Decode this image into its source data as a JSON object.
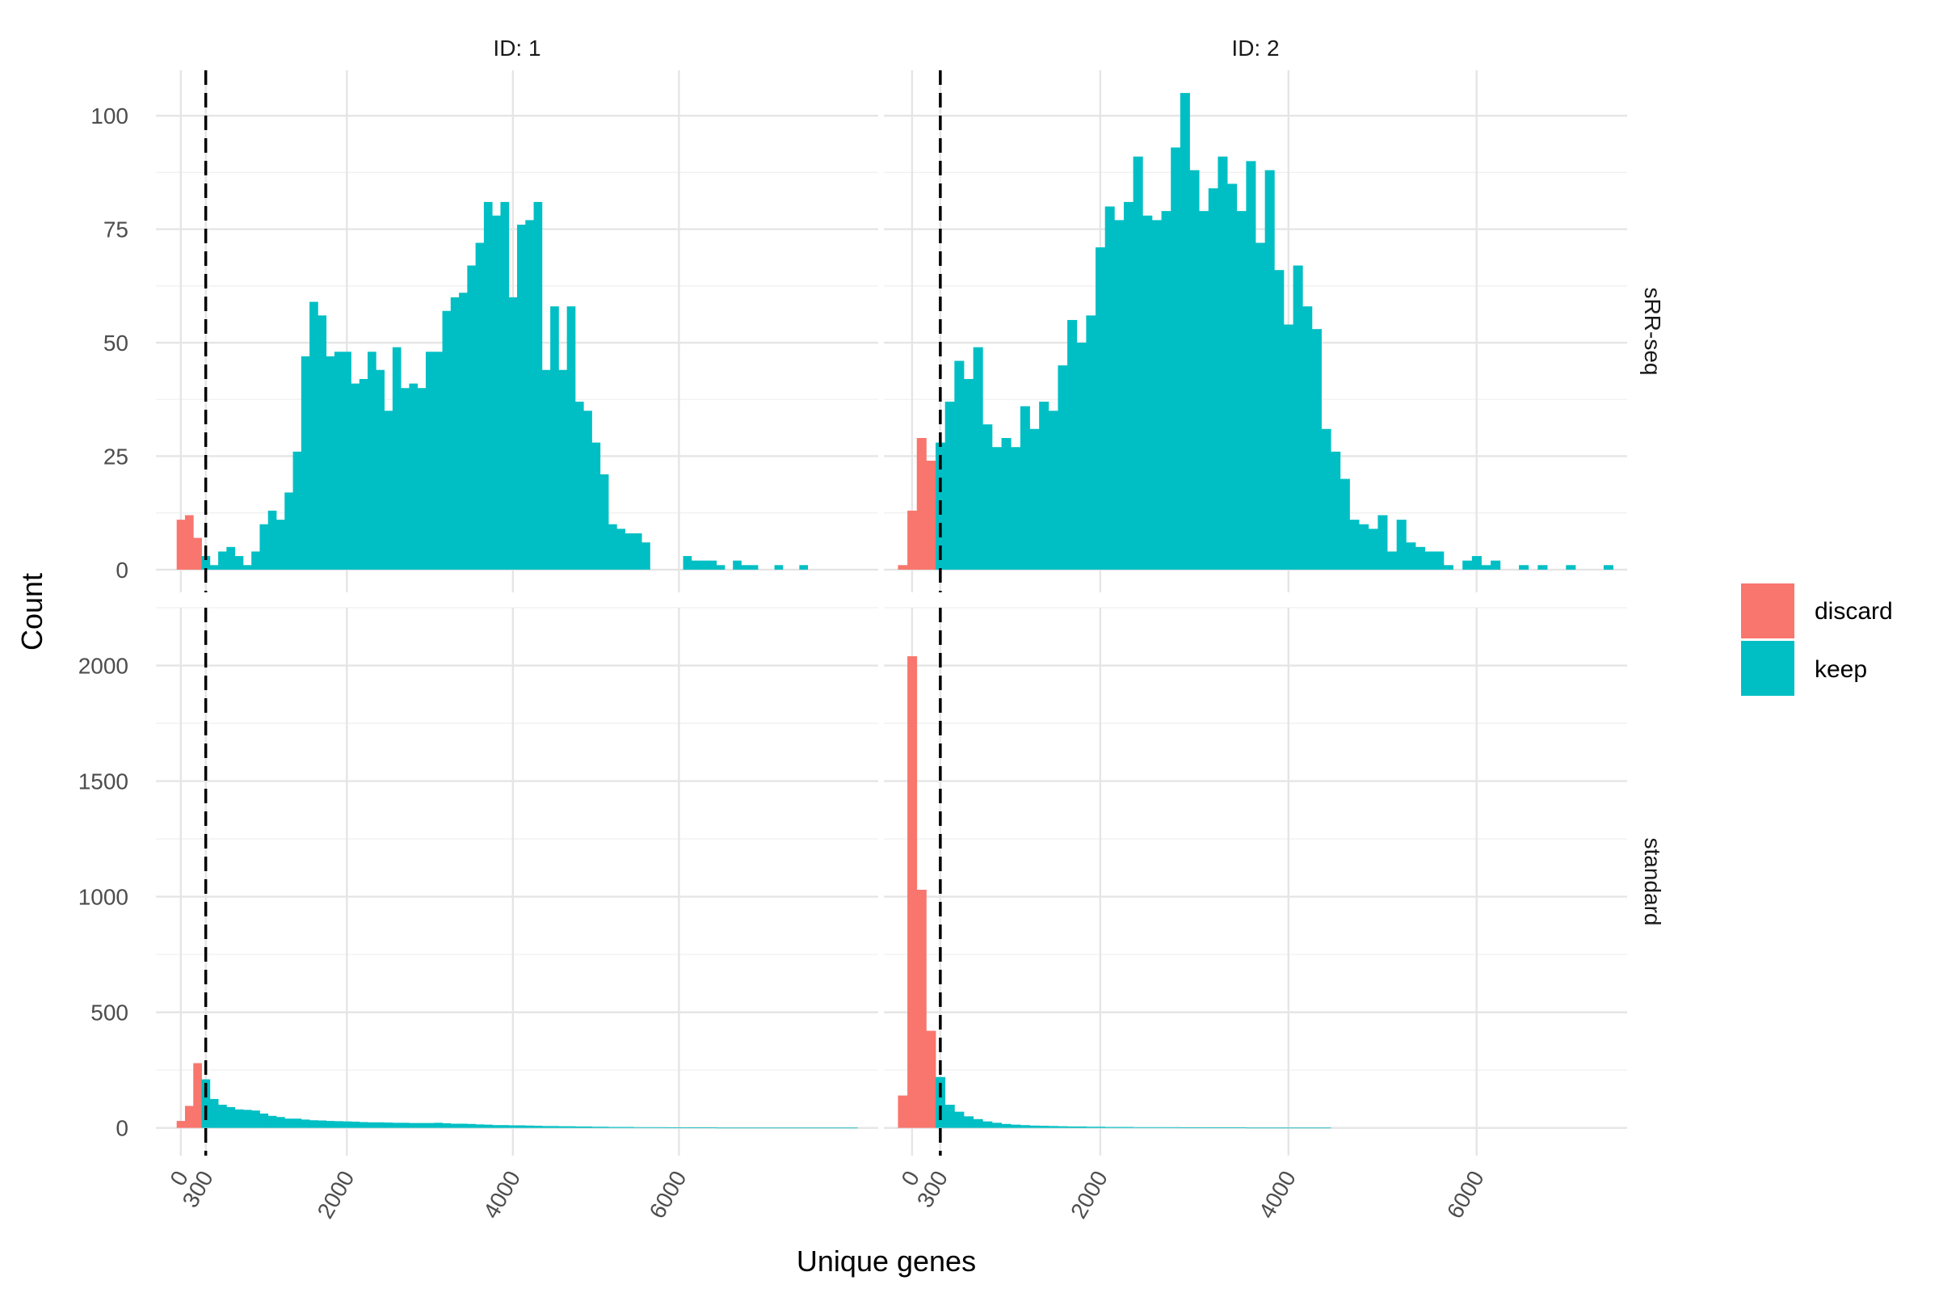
{
  "chart_data": {
    "type": "bar",
    "subtype": "faceted-histogram",
    "xlabel": "Unique genes",
    "ylabel": "Count",
    "bin_width": 100,
    "cutoff": 300,
    "x_ticks": [
      0,
      300,
      2000,
      4000,
      6000
    ],
    "x_tick_labels": [
      "0",
      "300",
      "2000",
      "4000",
      "6000"
    ],
    "column_strips": [
      "ID: 1",
      "ID: 2"
    ],
    "row_strips": [
      "sRR-seq",
      "standard"
    ],
    "colors": {
      "discard": "#F8766D",
      "keep": "#00BFC4"
    },
    "legend": {
      "position": "right",
      "entries": [
        {
          "label": "discard"
        },
        {
          "label": "keep"
        }
      ]
    },
    "facets": [
      {
        "column": "ID: 1",
        "row": "sRR-seq",
        "xlim": [
          -300,
          8400
        ],
        "ylim": [
          -5,
          110
        ],
        "y_ticks": [
          0,
          25,
          50,
          75,
          100
        ],
        "discard": {
          "x": [
            0,
            100,
            200
          ],
          "values": [
            11,
            12,
            7
          ]
        },
        "keep": {
          "x": [
            300,
            400,
            500,
            600,
            700,
            800,
            900,
            1000,
            1100,
            1200,
            1300,
            1400,
            1500,
            1600,
            1700,
            1800,
            1900,
            2000,
            2100,
            2200,
            2300,
            2400,
            2500,
            2600,
            2700,
            2800,
            2900,
            3000,
            3100,
            3200,
            3300,
            3400,
            3500,
            3600,
            3700,
            3800,
            3900,
            4000,
            4100,
            4200,
            4300,
            4400,
            4500,
            4600,
            4700,
            4800,
            4900,
            5000,
            5100,
            5200,
            5300,
            5400,
            5500,
            5600,
            5700,
            5800,
            5900,
            6000,
            6100,
            6200,
            6300,
            6400,
            6500,
            6600,
            6700,
            6800,
            6900,
            7000,
            7100,
            7200,
            7300,
            7400,
            7500,
            7600,
            7700,
            7800,
            7900,
            8000,
            8100
          ],
          "values": [
            3,
            1,
            4,
            5,
            3,
            1,
            4,
            10,
            13,
            11,
            17,
            26,
            47,
            59,
            56,
            47,
            48,
            48,
            41,
            42,
            48,
            44,
            35,
            49,
            40,
            41,
            40,
            48,
            48,
            57,
            60,
            61,
            67,
            72,
            81,
            78,
            81,
            60,
            76,
            77,
            81,
            44,
            58,
            44,
            58,
            37,
            35,
            28,
            21,
            10,
            9,
            8,
            8,
            6,
            0,
            0,
            0,
            0,
            3,
            2,
            2,
            2,
            1,
            0,
            2,
            1,
            1,
            0,
            0,
            1,
            0,
            0,
            1,
            0,
            0,
            0,
            0,
            0,
            0
          ]
        }
      },
      {
        "column": "ID: 2",
        "row": "sRR-seq",
        "xlim": [
          -300,
          7600
        ],
        "ylim": [
          -5,
          110
        ],
        "y_ticks": [
          0,
          25,
          50,
          75,
          100
        ],
        "discard": {
          "x": [
            -100,
            0,
            100,
            200
          ],
          "values": [
            1,
            13,
            29,
            24
          ]
        },
        "keep": {
          "x": [
            300,
            400,
            500,
            600,
            700,
            800,
            900,
            1000,
            1100,
            1200,
            1300,
            1400,
            1500,
            1600,
            1700,
            1800,
            1900,
            2000,
            2100,
            2200,
            2300,
            2400,
            2500,
            2600,
            2700,
            2800,
            2900,
            3000,
            3100,
            3200,
            3300,
            3400,
            3500,
            3600,
            3700,
            3800,
            3900,
            4000,
            4100,
            4200,
            4300,
            4400,
            4500,
            4600,
            4700,
            4800,
            4900,
            5000,
            5100,
            5200,
            5300,
            5400,
            5500,
            5600,
            5700,
            5800,
            5900,
            6000,
            6100,
            6200,
            6300,
            6400,
            6500,
            6600,
            6700,
            6800,
            6900,
            7000,
            7100,
            7200,
            7300,
            7400
          ],
          "values": [
            28,
            37,
            46,
            42,
            49,
            32,
            27,
            29,
            27,
            36,
            31,
            37,
            35,
            45,
            55,
            50,
            56,
            71,
            80,
            77,
            81,
            91,
            78,
            77,
            79,
            93,
            105,
            88,
            79,
            84,
            91,
            85,
            79,
            90,
            72,
            88,
            66,
            54,
            67,
            58,
            53,
            31,
            26,
            20,
            11,
            10,
            9,
            12,
            4,
            11,
            6,
            5,
            4,
            4,
            1,
            0,
            2,
            3,
            1,
            2,
            0,
            0,
            1,
            0,
            1,
            0,
            0,
            1,
            0,
            0,
            0,
            1
          ]
        }
      },
      {
        "column": "ID: 1",
        "row": "standard",
        "xlim": [
          -300,
          8400
        ],
        "ylim": [
          -120,
          2250
        ],
        "y_ticks": [
          0,
          500,
          1000,
          1500,
          2000
        ],
        "discard": {
          "x": [
            0,
            100,
            200
          ],
          "values": [
            30,
            95,
            280
          ]
        },
        "keep": {
          "x": [
            300,
            400,
            500,
            600,
            700,
            800,
            900,
            1000,
            1100,
            1200,
            1300,
            1400,
            1500,
            1600,
            1700,
            1800,
            1900,
            2000,
            2100,
            2200,
            2300,
            2400,
            2500,
            2600,
            2700,
            2800,
            2900,
            3000,
            3100,
            3200,
            3300,
            3400,
            3500,
            3600,
            3700,
            3800,
            3900,
            4000,
            4100,
            4200,
            4300,
            4400,
            4500,
            4600,
            4700,
            4800,
            4900,
            5000,
            5100,
            5200,
            5300,
            5400,
            5500,
            5600,
            5700,
            5800,
            5900,
            6000,
            6100,
            6200,
            6300,
            6400,
            6500,
            6600,
            6700,
            6800,
            6900,
            7000,
            7100,
            7200,
            7300,
            7400,
            7500,
            7600,
            7700,
            7800,
            7900,
            8000,
            8100
          ],
          "values": [
            210,
            125,
            100,
            90,
            80,
            78,
            75,
            62,
            52,
            47,
            40,
            40,
            36,
            33,
            32,
            30,
            29,
            28,
            27,
            25,
            24,
            24,
            23,
            22,
            22,
            21,
            21,
            21,
            22,
            20,
            18,
            18,
            17,
            15,
            14,
            12,
            12,
            11,
            11,
            10,
            9,
            8,
            8,
            7,
            7,
            6,
            6,
            5,
            5,
            4,
            4,
            4,
            3,
            3,
            3,
            3,
            2,
            2,
            2,
            2,
            2,
            2,
            1,
            1,
            1,
            1,
            1,
            1,
            1,
            1,
            1,
            1,
            1,
            1,
            1,
            1,
            1,
            1,
            1
          ]
        }
      },
      {
        "column": "ID: 2",
        "row": "standard",
        "xlim": [
          -300,
          7600
        ],
        "ylim": [
          -120,
          2250
        ],
        "y_ticks": [
          0,
          500,
          1000,
          1500,
          2000
        ],
        "discard": {
          "x": [
            -100,
            0,
            100,
            200
          ],
          "values": [
            140,
            2040,
            1030,
            420
          ]
        },
        "keep": {
          "x": [
            300,
            400,
            500,
            600,
            700,
            800,
            900,
            1000,
            1100,
            1200,
            1300,
            1400,
            1500,
            1600,
            1700,
            1800,
            1900,
            2000,
            2100,
            2200,
            2300,
            2400,
            2500,
            2600,
            2700,
            2800,
            2900,
            3000,
            3100,
            3200,
            3300,
            3400,
            3500,
            3600,
            3700,
            3800,
            3900,
            4000,
            4100,
            4200,
            4300,
            4400
          ],
          "values": [
            220,
            100,
            70,
            50,
            38,
            28,
            22,
            17,
            14,
            12,
            10,
            9,
            8,
            7,
            6,
            6,
            5,
            5,
            4,
            4,
            4,
            3,
            3,
            3,
            3,
            3,
            2,
            2,
            2,
            2,
            2,
            2,
            2,
            1,
            1,
            1,
            1,
            1,
            1,
            1,
            1,
            1
          ]
        }
      }
    ]
  }
}
